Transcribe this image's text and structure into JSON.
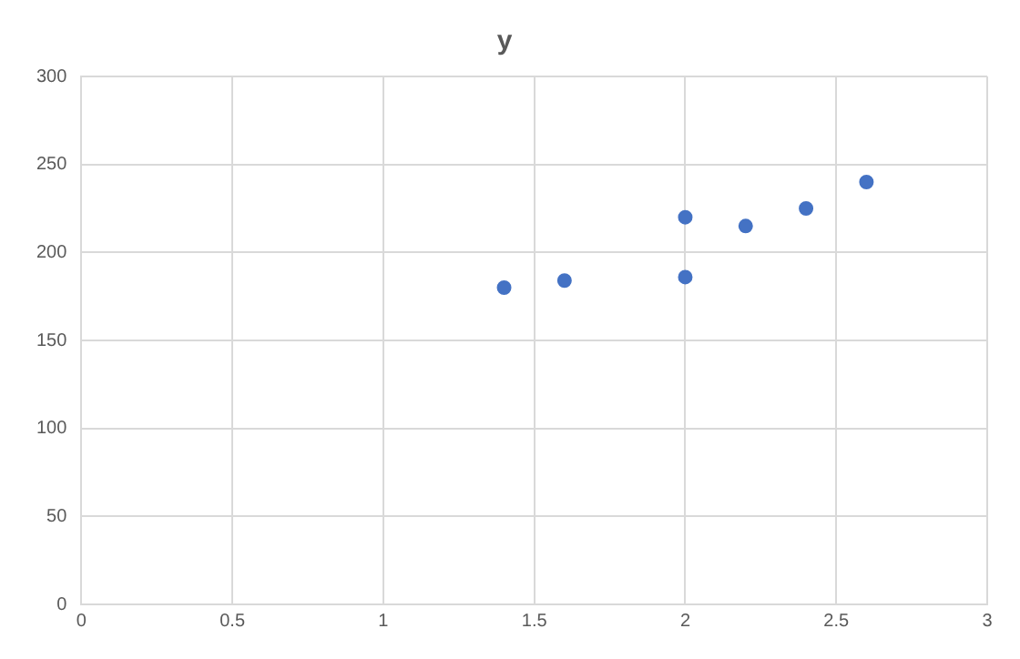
{
  "chart_data": {
    "type": "scatter",
    "title": "y",
    "x": [
      1.4,
      1.6,
      2.0,
      2.0,
      2.2,
      2.4,
      2.6
    ],
    "values": [
      180,
      184,
      220,
      186,
      215,
      225,
      240
    ],
    "color": "#4472c4",
    "xlim": [
      0,
      3
    ],
    "xticks": [
      0,
      0.5,
      1,
      1.5,
      2,
      2.5,
      3
    ],
    "ylim": [
      0,
      300
    ],
    "yticks": [
      0,
      50,
      100,
      150,
      200,
      250,
      300
    ],
    "grid": true,
    "marker": "circle"
  }
}
